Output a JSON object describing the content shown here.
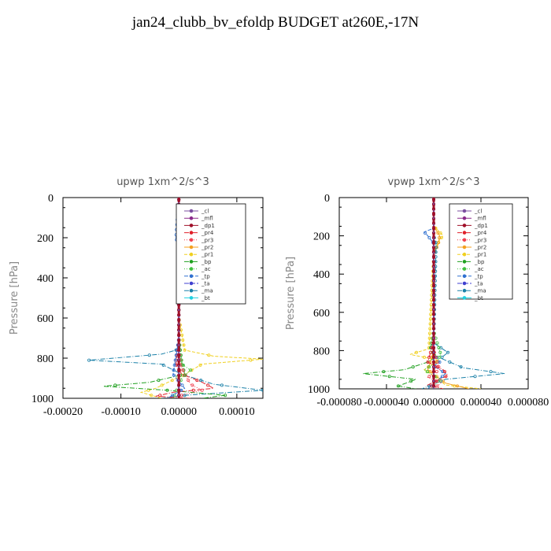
{
  "title": "jan24_clubb_bv_efoldp  BUDGET at260E,-17N",
  "colors": {
    "_cl": "#7b4fa0",
    "_mfl": "#8b2a8b",
    "_dp1": "#a0102a",
    "_pr4": "#e0202a",
    "_pr3": "#f04050",
    "_pr2": "#f4a020",
    "_pr1": "#f0d020",
    "_bp": "#20a020",
    "_ac": "#40c040",
    "_tp": "#3070d0",
    "_ta": "#4040d0",
    "_ma": "#1a80a8",
    "_bt": "#20d0e0"
  },
  "chart_data": [
    {
      "type": "line",
      "title": "upwp   1xm^2/s^3",
      "ylabel": "Pressure [hPa]",
      "xlim": [
        -0.0002,
        0.000145
      ],
      "ylim": [
        1000,
        0
      ],
      "yticks": [
        "0",
        "200",
        "400",
        "600",
        "800",
        "1000"
      ],
      "xticks": [
        "-0.00020",
        "-0.00010",
        "0.00000",
        "0.00010"
      ],
      "xtick_values": [
        -0.0002,
        -0.0001,
        0.0,
        0.0001
      ],
      "ytick_values": [
        0,
        200,
        400,
        600,
        800,
        1000
      ],
      "legend": [
        "_cl",
        "_mfl",
        "_dp1",
        "_pr4",
        "_pr3",
        "_pr2",
        "_pr1",
        "_bp",
        "_ac",
        "_tp",
        "_ta",
        "_ma",
        "_bt"
      ],
      "series": [
        {
          "name": "_ma",
          "x": [
            0,
            0,
            0,
            -5e-06,
            -3e-05,
            -0.000155,
            -3e-05,
            5e-06,
            6e-05,
            0.000145,
            1e-05,
            -3e-05
          ],
          "y": [
            0,
            500,
            740,
            760,
            780,
            810,
            830,
            880,
            930,
            960,
            985,
            1000
          ]
        },
        {
          "name": "_pr1",
          "x": [
            0,
            0,
            1e-05,
            6e-05,
            0.000145,
            4e-05,
            1e-05,
            -4e-05,
            -6.5e-05,
            -3e-05
          ],
          "y": [
            0,
            600,
            760,
            790,
            805,
            830,
            880,
            950,
            970,
            1000
          ]
        },
        {
          "name": "_bp",
          "x": [
            0,
            0,
            5e-06,
            1e-05,
            -5e-05,
            -0.00013,
            -2e-05,
            8e-05,
            4e-05
          ],
          "y": [
            0,
            700,
            820,
            880,
            920,
            940,
            960,
            985,
            1000
          ]
        },
        {
          "name": "_pr4",
          "x": [
            0,
            0,
            -5e-06,
            5e-06,
            4e-05,
            6e-05,
            -1e-05,
            -4e-05,
            2e-05
          ],
          "y": [
            0,
            700,
            830,
            880,
            920,
            950,
            970,
            990,
            1000
          ]
        },
        {
          "name": "_pr3",
          "x": [
            0,
            0,
            5e-06,
            2e-05,
            4e-05,
            5e-06,
            -2e-05
          ],
          "y": [
            0,
            750,
            850,
            930,
            960,
            985,
            1000
          ]
        },
        {
          "name": "_ac",
          "x": [
            0,
            0,
            5e-06,
            2e-05,
            5e-06,
            -1e-05
          ],
          "y": [
            0,
            700,
            830,
            860,
            900,
            1000
          ]
        },
        {
          "name": "_tp",
          "x": [
            0,
            -5e-06,
            0,
            0,
            -1e-05,
            1e-05,
            -2e-05
          ],
          "y": [
            0,
            200,
            250,
            700,
            880,
            950,
            1000
          ]
        },
        {
          "name": "_mfl",
          "x": [
            0,
            0,
            0
          ],
          "y": [
            0,
            500,
            1000
          ]
        },
        {
          "name": "_cl",
          "x": [
            0,
            0,
            0
          ],
          "y": [
            0,
            500,
            1000
          ]
        },
        {
          "name": "_dp1",
          "x": [
            0,
            0,
            0
          ],
          "y": [
            0,
            500,
            1000
          ]
        }
      ]
    },
    {
      "type": "line",
      "title": "vpwp   1xm^2/s^3",
      "ylabel": "Pressure [hPa]",
      "xlim": [
        -8e-05,
        8e-05
      ],
      "ylim": [
        1000,
        0
      ],
      "yticks": [
        "0",
        "200",
        "400",
        "600",
        "800",
        "1000"
      ],
      "xticks": [
        "-0.000080",
        "-0.000040",
        "0.000000",
        "0.000040",
        "0.000080"
      ],
      "xtick_values": [
        -8e-05,
        -4e-05,
        0.0,
        4e-05,
        8e-05
      ],
      "ytick_values": [
        0,
        200,
        400,
        600,
        800,
        1000
      ],
      "legend": [
        "_cl",
        "_mfl",
        "_dp1",
        "_pr4",
        "_pr3",
        "_pr2",
        "_pr1",
        "_bp",
        "_ac",
        "_tp",
        "_ta",
        "_ma",
        "_bt"
      ],
      "series": [
        {
          "name": "_pr1",
          "x": [
            0,
            0,
            5e-06,
            8e-06,
            5e-06,
            2e-06,
            0,
            -4e-06,
            -2e-05,
            4e-06,
            -8e-06,
            4e-06,
            1e-05,
            4e-05
          ],
          "y": [
            0,
            150,
            180,
            200,
            220,
            260,
            300,
            790,
            820,
            850,
            900,
            950,
            980,
            1000
          ]
        },
        {
          "name": "_pr2",
          "x": [
            0,
            0,
            5e-06,
            4e-06,
            0,
            0,
            -5e-06,
            1e-05,
            3e-05
          ],
          "y": [
            0,
            150,
            200,
            240,
            300,
            800,
            900,
            970,
            1000
          ]
        },
        {
          "name": "_tp",
          "x": [
            0,
            0,
            -8e-06,
            -5e-06,
            0,
            0,
            -3e-06,
            5e-06,
            0,
            1e-05,
            -5e-06
          ],
          "y": [
            0,
            160,
            180,
            200,
            240,
            760,
            780,
            860,
            880,
            920,
            1000
          ]
        },
        {
          "name": "_ma",
          "x": [
            0,
            0,
            2e-06,
            0,
            1.2e-05,
            6e-06,
            2.5e-05,
            6e-05,
            1e-05,
            -1e-05
          ],
          "y": [
            0,
            200,
            240,
            760,
            810,
            840,
            890,
            920,
            950,
            1000
          ]
        },
        {
          "name": "_bp",
          "x": [
            0,
            0,
            -3e-06,
            3e-06,
            -5e-06,
            -2.5e-05,
            -6e-05,
            -1.5e-05,
            -3e-05,
            -1.5e-05
          ],
          "y": [
            0,
            700,
            800,
            830,
            860,
            900,
            920,
            950,
            985,
            1000
          ]
        },
        {
          "name": "_ac",
          "x": [
            0,
            0,
            6e-06,
            3e-06,
            -8e-06,
            5e-06,
            -2e-06
          ],
          "y": [
            0,
            700,
            820,
            860,
            900,
            950,
            1000
          ]
        },
        {
          "name": "_pr4",
          "x": [
            0,
            0,
            -5e-06,
            8e-06,
            1.2e-05,
            5e-06,
            -5e-06,
            8e-06
          ],
          "y": [
            0,
            750,
            860,
            900,
            930,
            950,
            980,
            1000
          ]
        },
        {
          "name": "_pr3",
          "x": [
            0,
            0,
            5e-06,
            -5e-06,
            6e-06,
            0
          ],
          "y": [
            0,
            800,
            900,
            940,
            970,
            1000
          ]
        },
        {
          "name": "_mfl",
          "x": [
            0,
            0,
            0
          ],
          "y": [
            0,
            500,
            1000
          ]
        },
        {
          "name": "_cl",
          "x": [
            0,
            0,
            0
          ],
          "y": [
            0,
            500,
            1000
          ]
        },
        {
          "name": "_dp1",
          "x": [
            0,
            0,
            0
          ],
          "y": [
            0,
            500,
            1000
          ]
        }
      ]
    }
  ]
}
